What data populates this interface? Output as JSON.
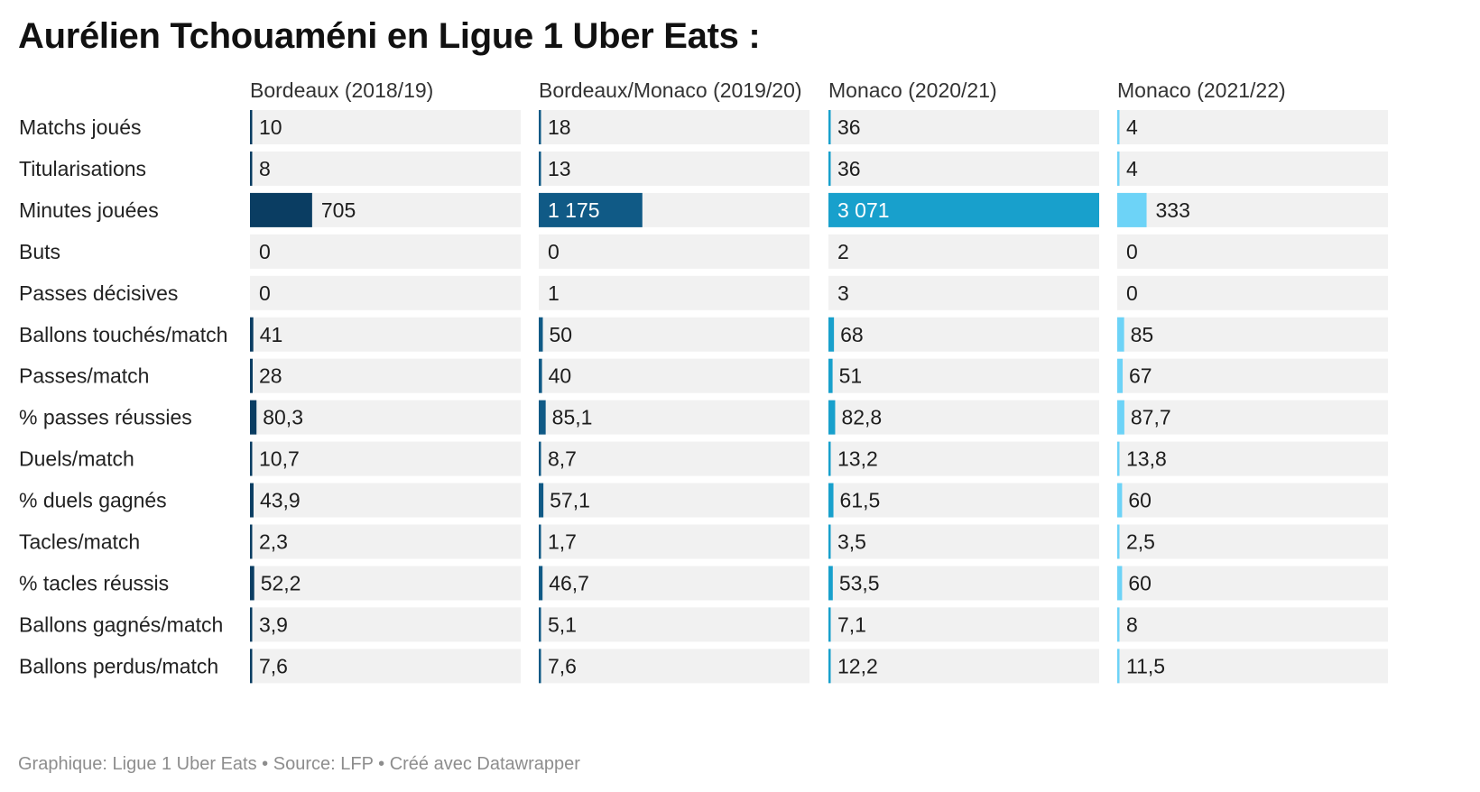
{
  "title": "Aurélien Tchouaméni en Ligue 1 Uber Eats :",
  "footer": {
    "graphic": "Graphique: Ligue 1 Uber Eats",
    "separator": "•",
    "source": "Source: LFP",
    "credit": "Créé avec Datawrapper"
  },
  "chart_data": {
    "type": "table",
    "columns": [
      {
        "name": "Bordeaux (2018/19)",
        "color": "#0a3d62"
      },
      {
        "name": "Bordeaux/Monaco (2019/20)",
        "color": "#105a86"
      },
      {
        "name": "Monaco (2020/21)",
        "color": "#18a0cc"
      },
      {
        "name": "Monaco (2021/22)",
        "color": "#6dd3f7"
      }
    ],
    "rows": [
      {
        "label": "Matchs joués",
        "values": [
          "10",
          "18",
          "36",
          "4"
        ],
        "bar": "rule"
      },
      {
        "label": "Titularisations",
        "values": [
          "8",
          "13",
          "36",
          "4"
        ],
        "bar": "rule"
      },
      {
        "label": "Minutes jouées",
        "values": [
          "705",
          "1 175",
          "3 071",
          "333"
        ],
        "bar": "full"
      },
      {
        "label": "Buts",
        "values": [
          "0",
          "0",
          "2",
          "0"
        ],
        "bar": "none"
      },
      {
        "label": "Passes décisives",
        "values": [
          "0",
          "1",
          "3",
          "0"
        ],
        "bar": "none"
      },
      {
        "label": "Ballons touchés/match",
        "values": [
          "41",
          "50",
          "68",
          "85"
        ],
        "bar": "small"
      },
      {
        "label": "Passes/match",
        "values": [
          "28",
          "40",
          "51",
          "67"
        ],
        "bar": "small"
      },
      {
        "label": "% passes réussies",
        "values": [
          "80,3",
          "85,1",
          "82,8",
          "87,7"
        ],
        "bar": "small"
      },
      {
        "label": "Duels/match",
        "values": [
          "10,7",
          "8,7",
          "13,2",
          "13,8"
        ],
        "bar": "rule"
      },
      {
        "label": "% duels gagnés",
        "values": [
          "43,9",
          "57,1",
          "61,5",
          "60"
        ],
        "bar": "small"
      },
      {
        "label": "Tacles/match",
        "values": [
          "2,3",
          "1,7",
          "3,5",
          "2,5"
        ],
        "bar": "rule"
      },
      {
        "label": "% tacles réussis",
        "values": [
          "52,2",
          "46,7",
          "53,5",
          "60"
        ],
        "bar": "small"
      },
      {
        "label": "Ballons gagnés/match",
        "values": [
          "3,9",
          "5,1",
          "7,1",
          "8"
        ],
        "bar": "rule"
      },
      {
        "label": "Ballons perdus/match",
        "values": [
          "7,6",
          "7,6",
          "12,2",
          "11,5"
        ],
        "bar": "rule"
      }
    ]
  }
}
